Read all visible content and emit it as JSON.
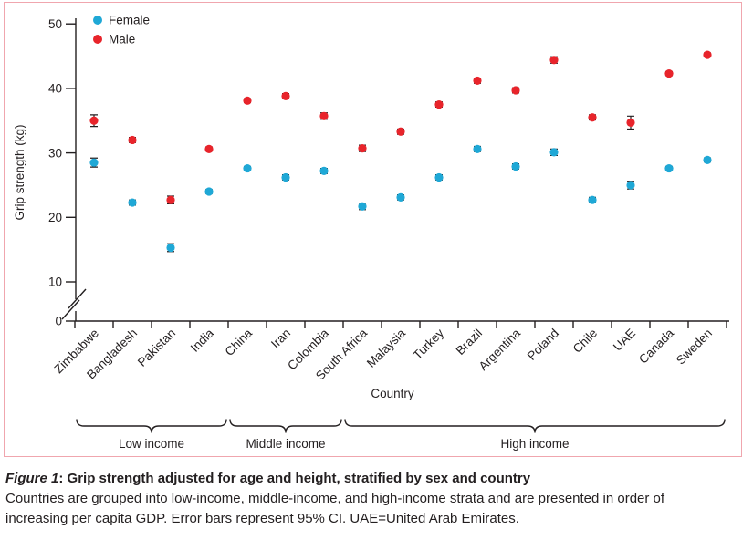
{
  "figure": {
    "caption": {
      "label": "Figure 1",
      "title": ": Grip strength adjusted for age and height, stratified by sex and country",
      "body_lines": [
        "Countries are grouped into low-income, middle-income, and high-income strata and are presented in order of",
        "increasing per capita GDP. Error bars represent 95% CI. UAE=United Arab Emirates."
      ]
    },
    "panel_border_color": "#f0a6ae",
    "ink_color": "#231f20"
  },
  "chart_data": {
    "type": "scatter",
    "title": "",
    "xlabel": "Country",
    "ylabel": "Grip strength (kg)",
    "ylim": [
      0,
      50
    ],
    "y_ticks": [
      0,
      10,
      20,
      30,
      40,
      50
    ],
    "y_axis_break_between": [
      0,
      10
    ],
    "grid": false,
    "legend_position": "top-left",
    "legend": [
      {
        "label": "Female",
        "color": "#1fa8d6"
      },
      {
        "label": "Male",
        "color": "#e8242b"
      }
    ],
    "categories": [
      "Zimbabwe",
      "Bangladesh",
      "Pakistan",
      "India",
      "China",
      "Iran",
      "Colombia",
      "South Africa",
      "Malaysia",
      "Turkey",
      "Brazil",
      "Argentina",
      "Poland",
      "Chile",
      "UAE",
      "Canada",
      "Sweden"
    ],
    "series": [
      {
        "name": "Female",
        "color": "#1fa8d6",
        "values": [
          28.5,
          22.3,
          15.3,
          24.0,
          27.6,
          26.2,
          27.2,
          21.7,
          23.1,
          26.2,
          30.6,
          27.9,
          30.1,
          22.7,
          25.0,
          27.6,
          28.9
        ],
        "ci95_half": [
          0.7,
          0.4,
          0.6,
          0.3,
          0.3,
          0.4,
          0.4,
          0.5,
          0.4,
          0.4,
          0.4,
          0.4,
          0.5,
          0.4,
          0.6,
          0.3,
          0.3
        ]
      },
      {
        "name": "Male",
        "color": "#e8242b",
        "values": [
          35.0,
          32.0,
          22.7,
          30.6,
          38.1,
          38.8,
          35.7,
          30.7,
          33.3,
          37.5,
          41.2,
          39.7,
          44.4,
          35.5,
          34.7,
          42.3,
          45.2
        ],
        "ci95_half": [
          0.9,
          0.4,
          0.6,
          0.3,
          0.3,
          0.4,
          0.5,
          0.5,
          0.4,
          0.4,
          0.4,
          0.4,
          0.5,
          0.4,
          1.0,
          0.3,
          0.3
        ]
      }
    ],
    "groups": [
      {
        "label": "Low income",
        "from": "Zimbabwe",
        "to": "India"
      },
      {
        "label": "Middle income",
        "from": "China",
        "to": "Colombia"
      },
      {
        "label": "High income",
        "from": "South Africa",
        "to": "Sweden"
      }
    ]
  }
}
